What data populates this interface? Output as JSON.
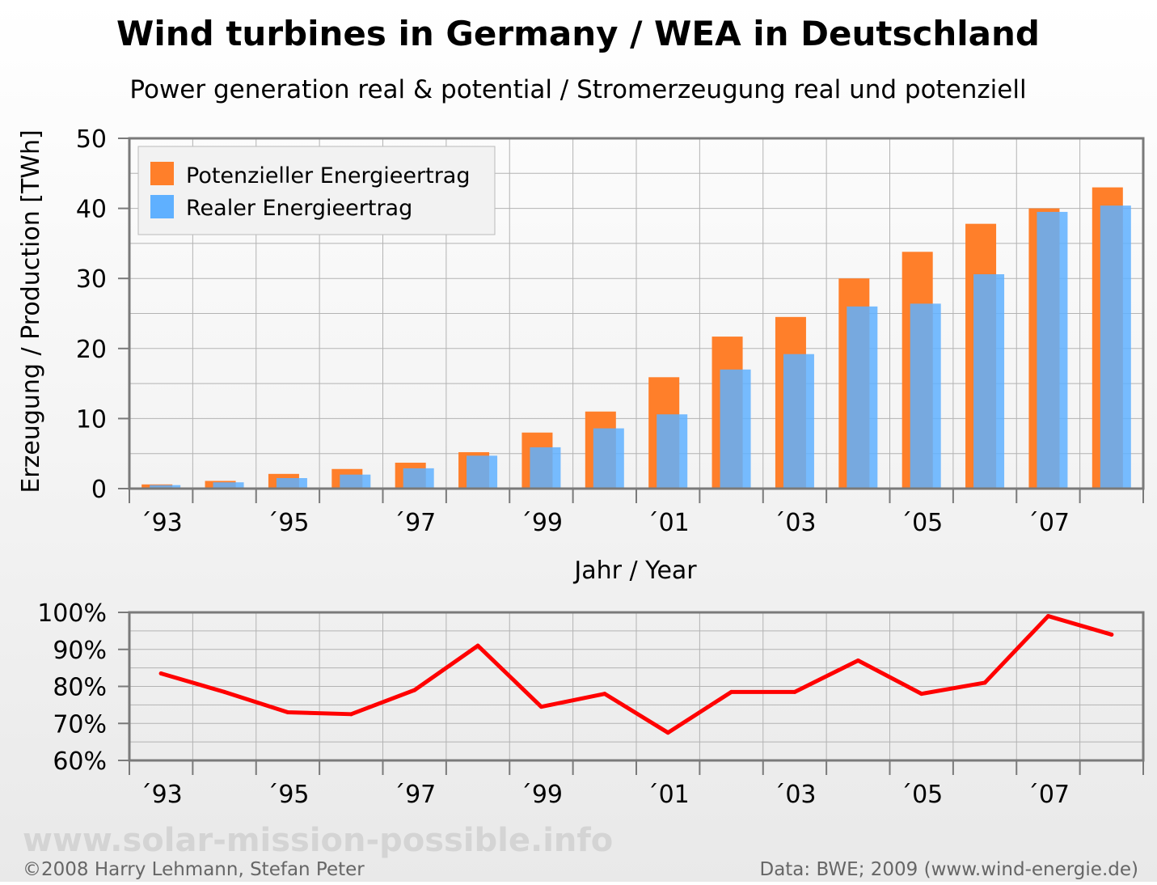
{
  "title": "Wind turbines in Germany / WEA in Deutschland",
  "subtitle": "Power generation real & potential / Stromerzeugung real und potenziell",
  "watermark": "www.solar-mission-possible.info",
  "footer_left": "©2008 Harry Lehmann, Stefan Peter",
  "footer_right": "Data: BWE; 2009 (www.wind-energie.de)",
  "colors": {
    "potential": "#ff7f2a",
    "real": "#5fb0ff",
    "ratio_line": "#ff0000",
    "grid": "#8c8c8c",
    "frame": "#7a7a7a"
  },
  "chart_data": [
    {
      "type": "bar",
      "xlabel": "Jahr / Year",
      "ylabel": "Erzeugung / Production [TWh]",
      "ylim": [
        0,
        50
      ],
      "yticks": [
        "0",
        "10",
        "20",
        "30",
        "40",
        "50"
      ],
      "grid": true,
      "legend_position": "top-left",
      "categories": [
        "1993",
        "1994",
        "1995",
        "1996",
        "1997",
        "1998",
        "1999",
        "2000",
        "2001",
        "2002",
        "2003",
        "2004",
        "2005",
        "2006",
        "2007",
        "2008"
      ],
      "tick_labels": [
        "´93",
        "´95",
        "´97",
        "´99",
        "´01",
        "´03",
        "´05",
        "´07"
      ],
      "series": [
        {
          "name": "Potenzieller Energieertrag",
          "values": [
            0.6,
            1.1,
            2.1,
            2.8,
            3.7,
            5.2,
            8.0,
            11.0,
            15.9,
            21.7,
            24.5,
            30.0,
            33.8,
            37.8,
            40.0,
            43.0
          ]
        },
        {
          "name": "Realer Energieertrag",
          "values": [
            0.5,
            0.9,
            1.5,
            2.0,
            2.9,
            4.7,
            5.9,
            8.6,
            10.6,
            17.0,
            19.2,
            26.0,
            26.4,
            30.6,
            39.5,
            40.4
          ]
        }
      ]
    },
    {
      "type": "line",
      "ylim": [
        60,
        100
      ],
      "yticks": [
        "60%",
        "70%",
        "80%",
        "90%",
        "100%"
      ],
      "grid": true,
      "categories": [
        "1993",
        "1994",
        "1995",
        "1996",
        "1997",
        "1998",
        "1999",
        "2000",
        "2001",
        "2002",
        "2003",
        "2004",
        "2005",
        "2006",
        "2007",
        "2008"
      ],
      "tick_labels": [
        "´93",
        "´95",
        "´97",
        "´99",
        "´01",
        "´03",
        "´05",
        "´07"
      ],
      "values": [
        83.5,
        78.5,
        73.0,
        72.5,
        79.0,
        91.0,
        74.5,
        78.0,
        67.5,
        78.5,
        78.5,
        87.0,
        78.0,
        81.0,
        99.0,
        94.0
      ]
    }
  ]
}
